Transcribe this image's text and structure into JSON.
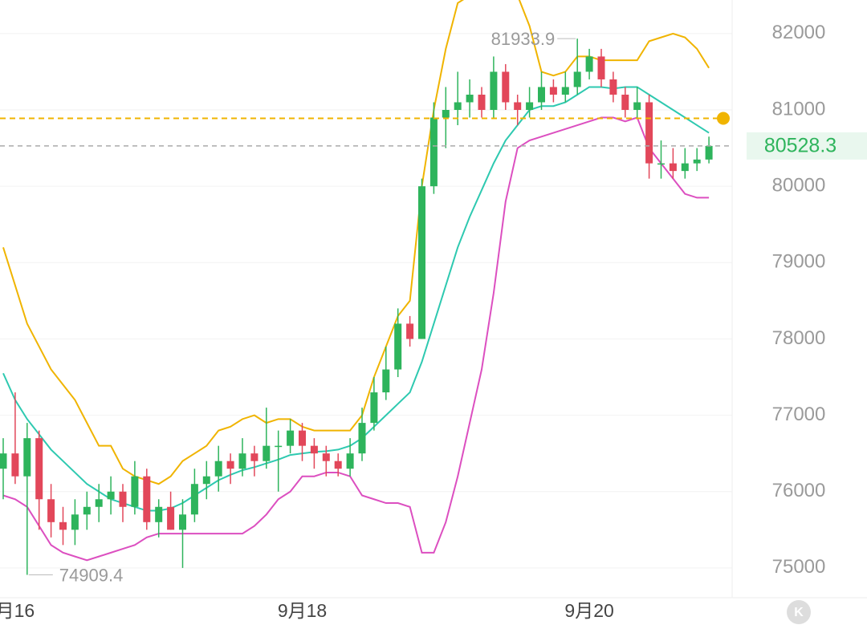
{
  "chart_data": {
    "type": "candlestick",
    "categories": [
      null,
      "月16",
      null,
      null,
      null,
      null,
      null,
      null,
      null,
      null,
      null,
      null,
      null,
      null,
      null,
      null,
      null,
      null,
      null,
      null,
      null,
      null,
      null,
      null,
      null,
      "9月18",
      null,
      null,
      null,
      null,
      null,
      null,
      null,
      null,
      null,
      null,
      null,
      null,
      null,
      null,
      null,
      null,
      null,
      null,
      null,
      null,
      null,
      null,
      null,
      "9月20",
      null,
      null,
      null,
      null,
      null,
      null,
      null,
      null,
      null,
      null
    ],
    "open": [
      76300,
      76500,
      76200,
      76700,
      75900,
      75600,
      75500,
      75700,
      75800,
      75900,
      76000,
      75800,
      76200,
      75600,
      75800,
      75500,
      75700,
      76100,
      76200,
      76400,
      76300,
      76500,
      76400,
      76600,
      76600,
      76800,
      76600,
      76500,
      76400,
      76300,
      76500,
      76900,
      77300,
      77600,
      78200,
      78000,
      80000,
      80900,
      81000,
      81100,
      81200,
      81000,
      81500,
      81100,
      81000,
      81100,
      81300,
      81200,
      81300,
      81500,
      81700,
      81400,
      81200,
      81000,
      81100,
      80300,
      80300,
      80200,
      80300,
      80350
    ],
    "high": [
      76700,
      77300,
      76900,
      76800,
      76100,
      75800,
      75900,
      76000,
      76100,
      76200,
      76100,
      76400,
      76300,
      75900,
      76000,
      75900,
      76300,
      76400,
      76600,
      76500,
      76700,
      76600,
      77100,
      76800,
      76950,
      76900,
      76700,
      76600,
      76500,
      76700,
      77100,
      77500,
      77900,
      78400,
      78300,
      80100,
      81100,
      81300,
      81500,
      81400,
      81300,
      81700,
      81600,
      81200,
      81300,
      81500,
      81400,
      81500,
      81933.9,
      81800,
      81800,
      81500,
      81300,
      81300,
      81200,
      80600,
      80500,
      80500,
      80500,
      80650
    ],
    "low": [
      75900,
      76100,
      74909.4,
      75500,
      75400,
      75300,
      75300,
      75500,
      75600,
      75700,
      75600,
      75700,
      75500,
      75400,
      75500,
      75000,
      75600,
      75900,
      76000,
      76100,
      76200,
      76200,
      76300,
      76000,
      76500,
      76400,
      76300,
      76200,
      76200,
      76200,
      76400,
      76800,
      77200,
      77500,
      77900,
      78000,
      79900,
      80500,
      80800,
      80900,
      80900,
      80900,
      81000,
      80800,
      80900,
      81000,
      81100,
      81100,
      81200,
      81400,
      81300,
      81100,
      80900,
      80900,
      80100,
      80100,
      80100,
      80100,
      80200,
      80300
    ],
    "close": [
      76500,
      76200,
      76700,
      75900,
      75600,
      75500,
      75700,
      75800,
      75900,
      76000,
      75800,
      76200,
      75600,
      75800,
      75500,
      75700,
      76100,
      76200,
      76400,
      76300,
      76500,
      76400,
      76600,
      76600,
      76800,
      76600,
      76500,
      76400,
      76300,
      76500,
      76900,
      77300,
      77600,
      78200,
      78000,
      80000,
      80900,
      81000,
      81100,
      81200,
      81000,
      81500,
      81100,
      81000,
      81100,
      81300,
      81200,
      81300,
      81500,
      81700,
      81400,
      81200,
      81000,
      81100,
      80300,
      80300,
      80200,
      80300,
      80350,
      80528.3
    ],
    "up_color": "#2eb45c",
    "down_color": "#e2475a",
    "overlays": [
      {
        "color": "#f0b400",
        "values": [
          79200,
          78700,
          78200,
          77900,
          77600,
          77400,
          77200,
          76900,
          76600,
          76600,
          76300,
          76200,
          76150,
          76100,
          76200,
          76400,
          76500,
          76600,
          76800,
          76850,
          76950,
          77000,
          76900,
          76950,
          76950,
          76850,
          76800,
          76800,
          76800,
          76800,
          77000,
          77500,
          77900,
          78300,
          78500,
          80000,
          81000,
          81800,
          82400,
          82500,
          82500,
          82500,
          82500,
          82500,
          82100,
          81500,
          81450,
          81500,
          81700,
          81700,
          81650,
          81650,
          81650,
          81650,
          81900,
          81950,
          82000,
          81950,
          81800,
          81550
        ]
      },
      {
        "color": "#2ec9b0",
        "values": [
          77550,
          77200,
          76950,
          76750,
          76550,
          76400,
          76250,
          76100,
          76000,
          75900,
          75850,
          75800,
          75750,
          75750,
          75780,
          75850,
          75950,
          76050,
          76150,
          76220,
          76280,
          76320,
          76370,
          76420,
          76480,
          76500,
          76520,
          76530,
          76550,
          76600,
          76700,
          76850,
          77000,
          77150,
          77300,
          77700,
          78200,
          78700,
          79200,
          79600,
          79950,
          80300,
          80600,
          80800,
          81000,
          81050,
          81050,
          81100,
          81200,
          81300,
          81300,
          81280,
          81300,
          81300,
          81200,
          81100,
          81000,
          80900,
          80800,
          80700
        ]
      },
      {
        "color": "#dc4fc0",
        "values": [
          75950,
          75900,
          75800,
          75550,
          75300,
          75200,
          75150,
          75100,
          75150,
          75200,
          75250,
          75300,
          75400,
          75450,
          75450,
          75450,
          75450,
          75450,
          75450,
          75450,
          75450,
          75550,
          75700,
          75900,
          76000,
          76200,
          76200,
          76250,
          76250,
          76200,
          75950,
          75900,
          75850,
          75850,
          75800,
          75200,
          75200,
          75600,
          76200,
          76900,
          77600,
          78600,
          79800,
          80500,
          80600,
          80650,
          80700,
          80750,
          80800,
          80850,
          80900,
          80900,
          80850,
          80900,
          80500,
          80300,
          80100,
          79900,
          79850,
          79850
        ]
      }
    ],
    "order_line": {
      "value": 80890,
      "color": "#f0b400"
    },
    "ylim": [
      74610,
      82440
    ],
    "yticks": [
      75000,
      76000,
      77000,
      78000,
      79000,
      80000,
      81000,
      82000
    ],
    "grid": true
  }
}
